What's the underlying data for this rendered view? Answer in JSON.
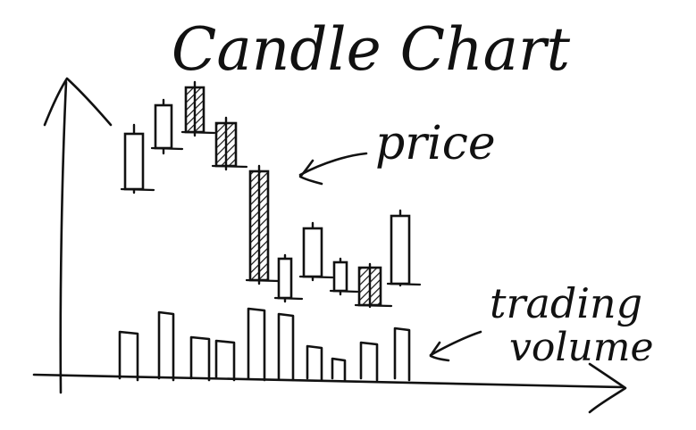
{
  "title": "Candle Chart",
  "annotations": {
    "price": "price",
    "trading_volume_line1": "trading",
    "trading_volume_line2": "volume"
  },
  "colors": {
    "ink": "#111111",
    "background": "#ffffff"
  },
  "candles": [
    {
      "id": 1,
      "style": "hollow"
    },
    {
      "id": 2,
      "style": "hollow"
    },
    {
      "id": 3,
      "style": "hatched"
    },
    {
      "id": 4,
      "style": "hatched"
    },
    {
      "id": 5,
      "style": "hatched"
    },
    {
      "id": 6,
      "style": "hollow"
    },
    {
      "id": 7,
      "style": "hollow"
    },
    {
      "id": 8,
      "style": "hollow"
    },
    {
      "id": 9,
      "style": "hatched"
    },
    {
      "id": 10,
      "style": "hollow"
    }
  ]
}
